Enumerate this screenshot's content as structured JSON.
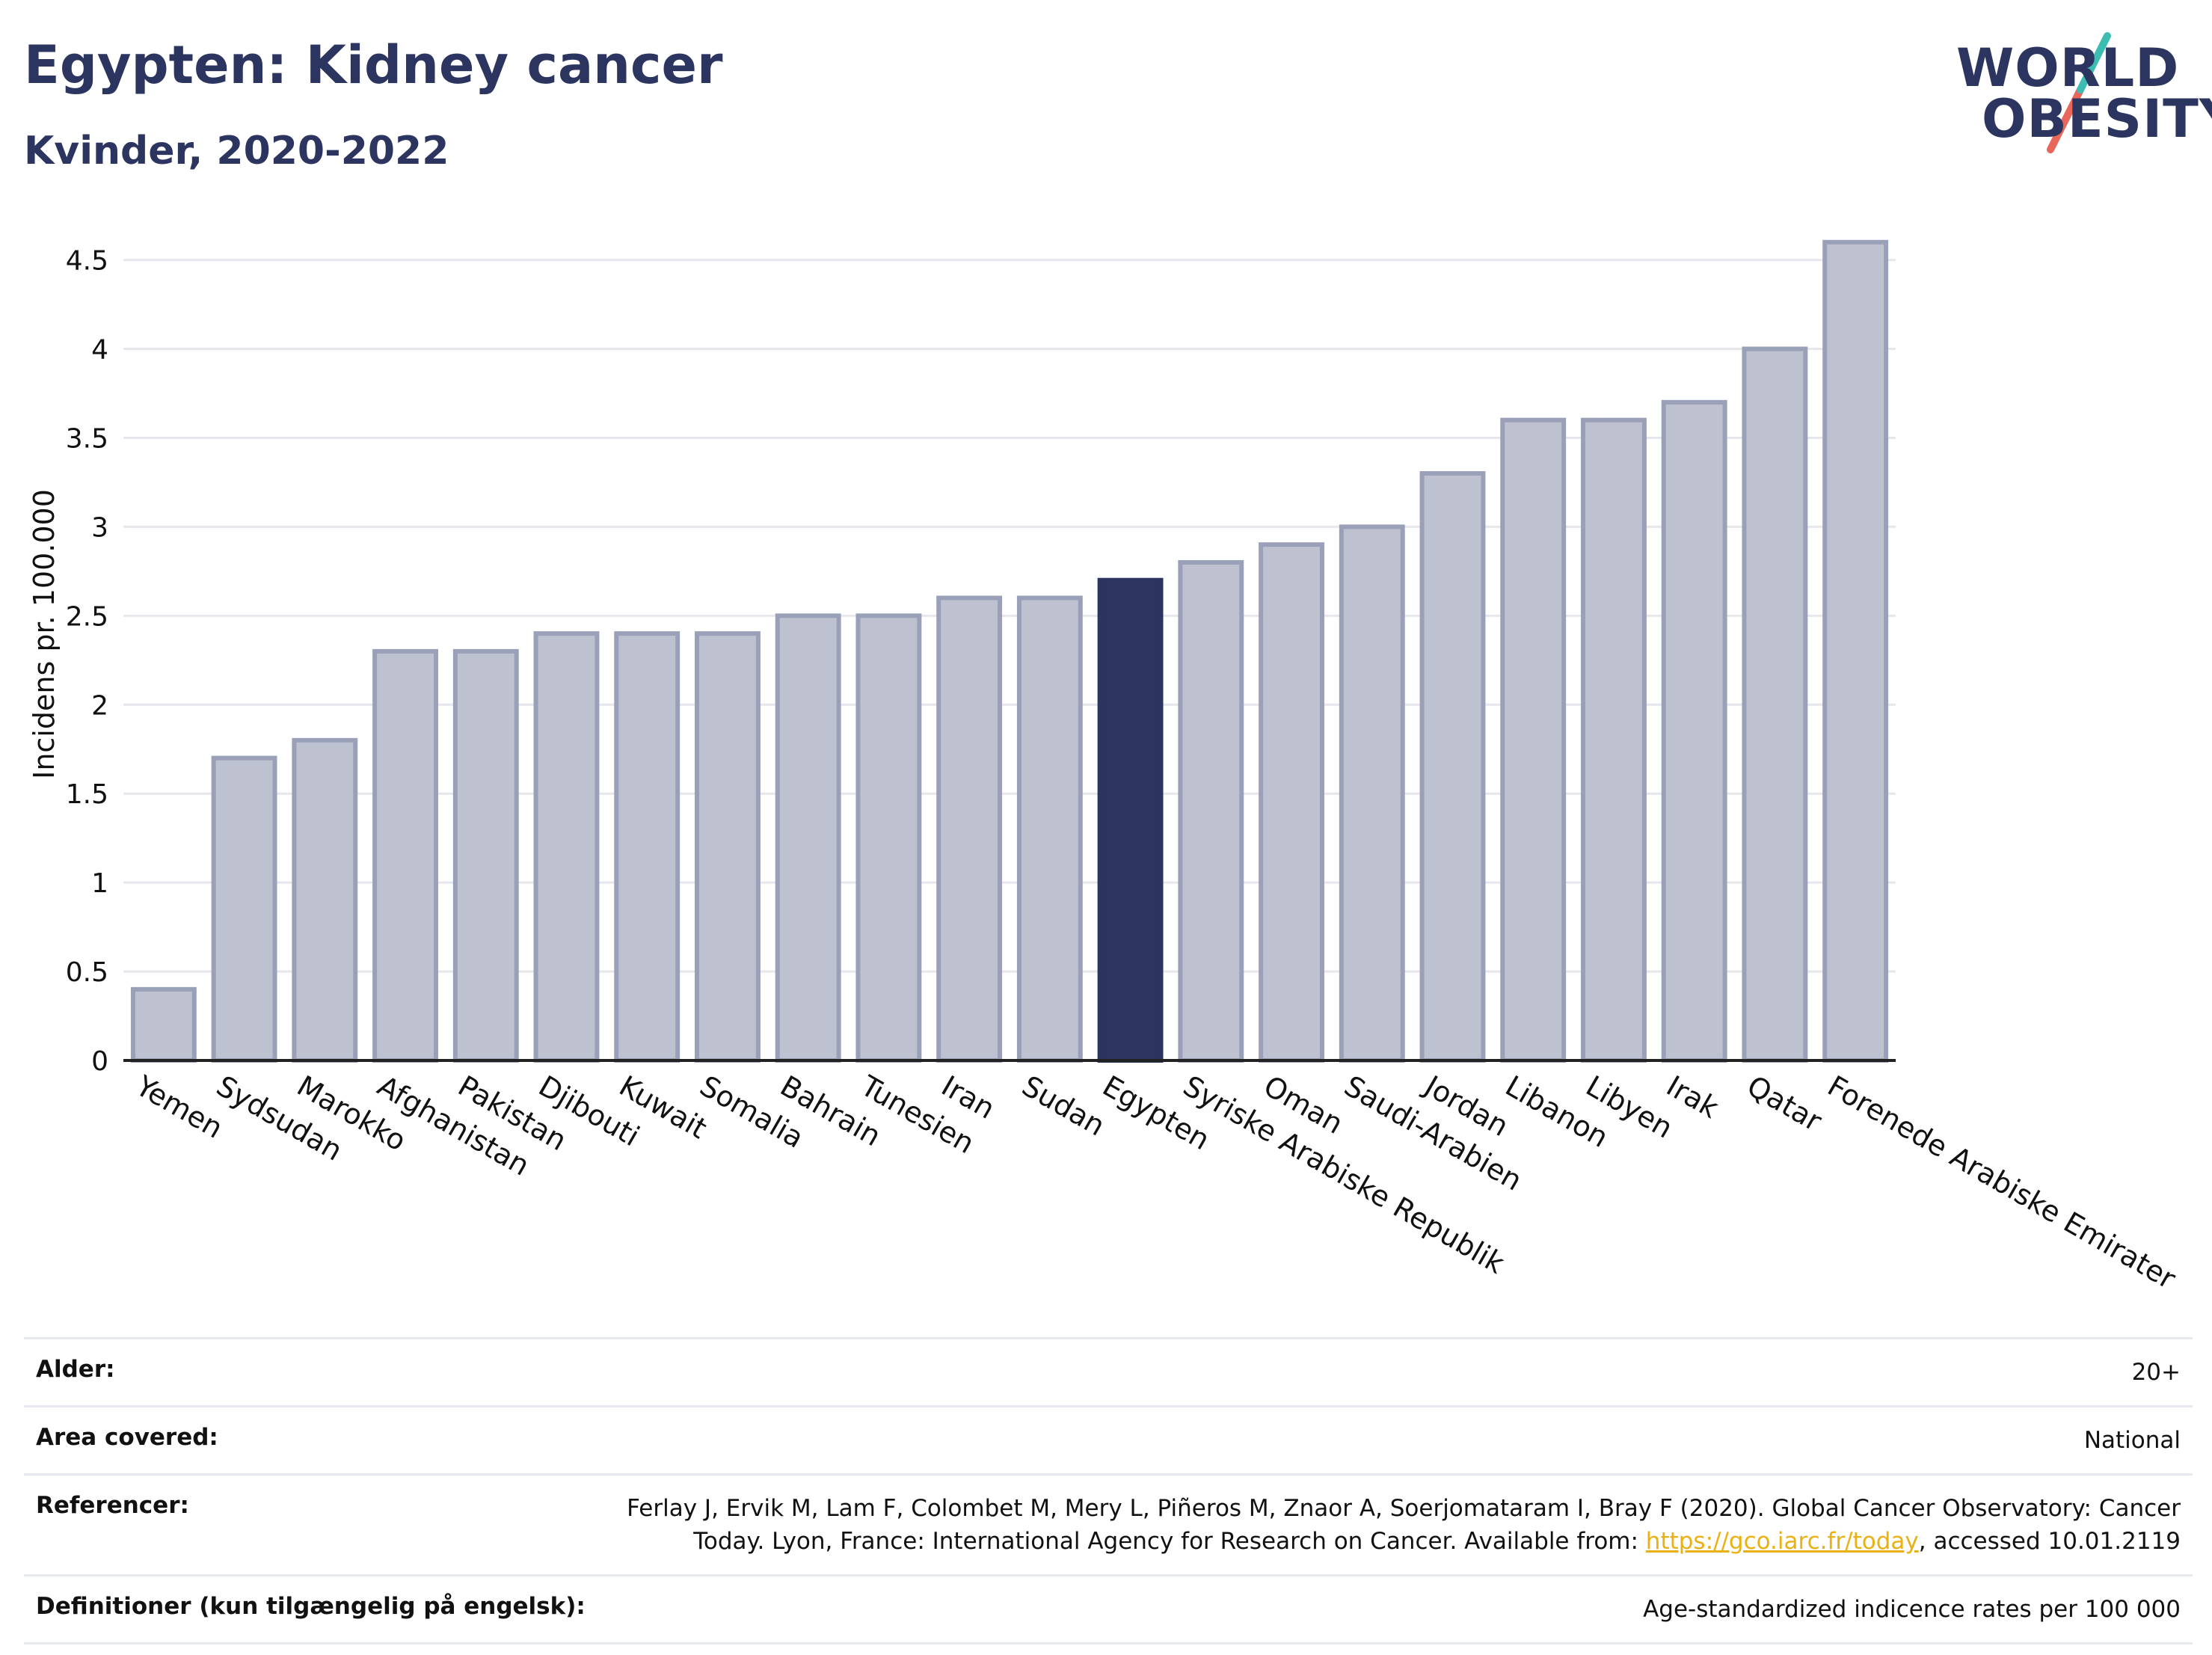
{
  "header": {
    "title": "Egypten: Kidney cancer",
    "subtitle": "Kvinder, 2020-2022"
  },
  "logo": {
    "line1": "WORLD",
    "line2": "OBESITY",
    "colors": {
      "text": "#2b3560",
      "slash_top": "#3dbdb2",
      "slash_bottom": "#e8665a"
    }
  },
  "chart_data": {
    "type": "bar",
    "title": "Egypten: Kidney cancer",
    "subtitle": "Kvinder, 2020-2022",
    "xlabel": "",
    "ylabel": "Incidens pr. 100.000",
    "ylim": [
      0,
      4.7
    ],
    "yticks": [
      0,
      0.5,
      1,
      1.5,
      2,
      2.5,
      3,
      3.5,
      4,
      4.5
    ],
    "ytick_labels": [
      "0",
      "0.5",
      "1",
      "1.5",
      "2",
      "2.5",
      "3",
      "3.5",
      "4",
      "4.5"
    ],
    "grid": true,
    "highlight": "Egypten",
    "colors": {
      "bar": "#bec2d0",
      "bar_edge": "#9aa0b7",
      "highlight": "#2b3560"
    },
    "categories": [
      "Yemen",
      "Sydsudan",
      "Marokko",
      "Afghanistan",
      "Pakistan",
      "Djibouti",
      "Kuwait",
      "Somalia",
      "Bahrain",
      "Tunesien",
      "Iran",
      "Sudan",
      "Egypten",
      "Syriske Arabiske Republik",
      "Oman",
      "Saudi-Arabien",
      "Jordan",
      "Libanon",
      "Libyen",
      "Irak",
      "Qatar",
      "Forenede Arabiske Emirater"
    ],
    "values": [
      0.4,
      1.7,
      1.8,
      2.3,
      2.3,
      2.4,
      2.4,
      2.4,
      2.5,
      2.5,
      2.6,
      2.6,
      2.7,
      2.8,
      2.9,
      3.0,
      3.3,
      3.6,
      3.6,
      3.7,
      4.0,
      4.6
    ]
  },
  "meta": {
    "rows": [
      {
        "label": "Alder:",
        "value": "20+"
      },
      {
        "label": "Area covered:",
        "value": "National"
      },
      {
        "label": "Referencer:",
        "value_line1": "Ferlay J, Ervik M, Lam F, Colombet M, Mery L, Piñeros M, Znaor A, Soerjomataram I, Bray F (2020). Global Cancer Observatory: Cancer",
        "value_line2_pre": "Today. Lyon, France: International Agency for Research on Cancer. Available from: ",
        "link": "https://gco.iarc.fr/today",
        "value_line2_post": ", accessed 10.01.2119"
      },
      {
        "label": "Definitioner (kun tilgængelig på engelsk):",
        "value": "Age-standardized indicence rates per 100 000"
      }
    ]
  }
}
